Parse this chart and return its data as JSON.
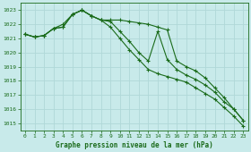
{
  "title": "Graphe pression niveau de la mer (hPa)",
  "bg_color": "#c8eaea",
  "grid_color": "#b0d8d8",
  "line_color": "#1a6b1a",
  "ylim": [
    1014.5,
    1023.5
  ],
  "xlim": [
    -0.5,
    23.5
  ],
  "yticks": [
    1015,
    1016,
    1017,
    1018,
    1019,
    1020,
    1021,
    1022,
    1023
  ],
  "xticks": [
    0,
    1,
    2,
    3,
    4,
    5,
    6,
    7,
    8,
    9,
    10,
    11,
    12,
    13,
    14,
    15,
    16,
    17,
    18,
    19,
    20,
    21,
    22,
    23
  ],
  "series1": [
    1021.3,
    1021.1,
    1021.2,
    1021.7,
    1021.8,
    1022.7,
    1023.0,
    1022.6,
    1022.3,
    1022.2,
    1021.5,
    1020.8,
    1020.0,
    1019.4,
    1021.5,
    1019.5,
    1018.8,
    1018.4,
    1018.1,
    1017.7,
    1017.2,
    1016.5,
    1016.0,
    1015.2
  ],
  "series2": [
    1021.3,
    1021.1,
    1021.2,
    1021.7,
    1022.0,
    1022.7,
    1023.0,
    1022.6,
    1022.3,
    1022.3,
    1022.3,
    1022.2,
    1022.1,
    1022.0,
    1021.8,
    1021.6,
    1019.4,
    1019.0,
    1018.7,
    1018.2,
    1017.5,
    1016.8,
    1016.0,
    1015.2
  ],
  "series3": [
    1021.3,
    1021.1,
    1021.2,
    1021.7,
    1021.8,
    1022.7,
    1023.0,
    1022.6,
    1022.3,
    1021.8,
    1021.0,
    1020.2,
    1019.5,
    1018.8,
    1018.5,
    1018.3,
    1018.1,
    1017.9,
    1017.5,
    1017.1,
    1016.7,
    1016.1,
    1015.5,
    1014.8
  ]
}
